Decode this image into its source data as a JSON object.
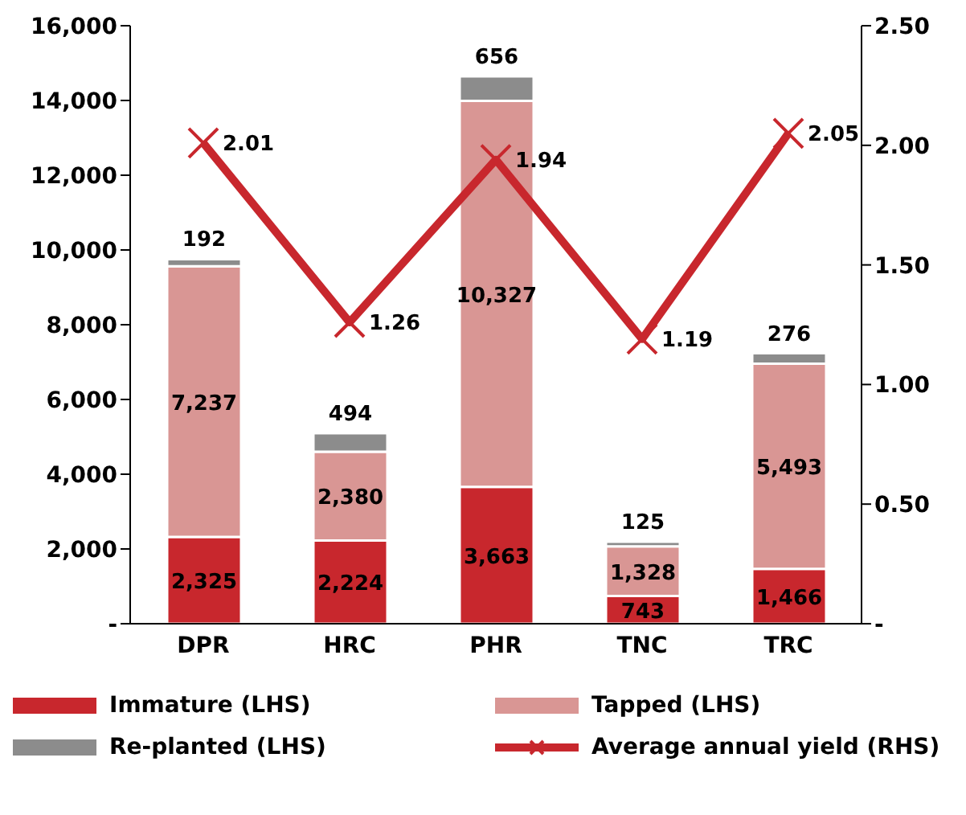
{
  "chart_data": {
    "type": "bar",
    "stacked": true,
    "categories": [
      "DPR",
      "HRC",
      "PHR",
      "TNC",
      "TRC"
    ],
    "series": [
      {
        "name": "Immature (LHS)",
        "color": "#c8272d",
        "values": [
          2325,
          2224,
          3663,
          743,
          1466
        ],
        "value_labels": [
          "2,325",
          "2,224",
          "3,663",
          "743",
          "1,466"
        ]
      },
      {
        "name": "Tapped (LHS)",
        "color": "#d99694",
        "values": [
          7237,
          2380,
          10327,
          1328,
          5493
        ],
        "value_labels": [
          "7,237",
          "2,380",
          "10,327",
          "1,328",
          "5,493"
        ]
      },
      {
        "name": "Re-planted (LHS)",
        "color": "#8c8c8c",
        "values": [
          192,
          494,
          656,
          125,
          276
        ]
      },
      {
        "name": "Average annual yield (RHS)",
        "type": "line",
        "axis": "y2",
        "color": "#c8272d",
        "marker": "cross",
        "line_style": "solid",
        "values": [
          2.01,
          1.26,
          1.94,
          1.19,
          2.05
        ]
      }
    ],
    "ylim": [
      0,
      16000
    ],
    "yticks": [
      {
        "value": 0,
        "label": "-"
      },
      {
        "value": 2000,
        "label": "2,000"
      },
      {
        "value": 4000,
        "label": "4,000"
      },
      {
        "value": 6000,
        "label": "6,000"
      },
      {
        "value": 8000,
        "label": "8,000"
      },
      {
        "value": 10000,
        "label": "10,000"
      },
      {
        "value": 12000,
        "label": "12,000"
      },
      {
        "value": 14000,
        "label": "14,000"
      },
      {
        "value": 16000,
        "label": "16,000"
      }
    ],
    "y2lim": [
      0,
      2.5
    ],
    "y2ticks": [
      {
        "value": 0,
        "label": "-"
      },
      {
        "value": 0.5,
        "label": "0.50"
      },
      {
        "value": 1,
        "label": "1.00"
      },
      {
        "value": 1.5,
        "label": "1.50"
      },
      {
        "value": 2,
        "label": "2.00"
      },
      {
        "value": 2.5,
        "label": "2.50"
      }
    ],
    "data_labels": true,
    "grid": false,
    "legend": "bottom"
  }
}
